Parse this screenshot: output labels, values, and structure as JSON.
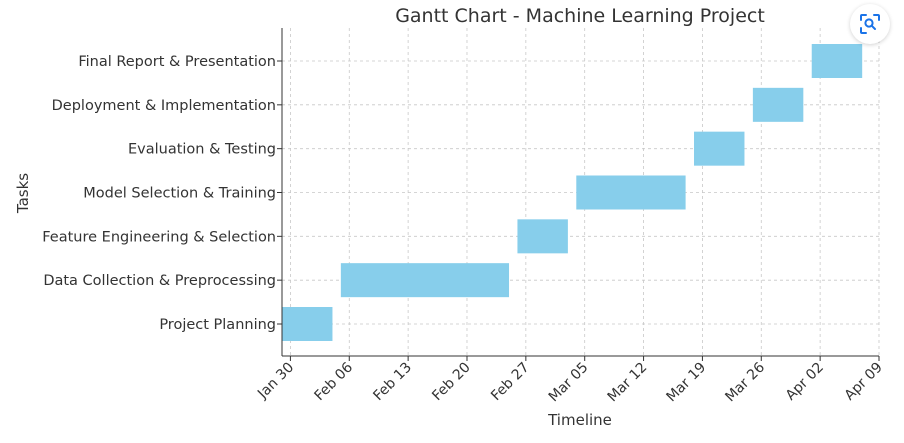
{
  "chart_data": {
    "type": "gantt",
    "title": "Gantt Chart - Machine Learning Project",
    "xlabel": "Timeline",
    "ylabel": "Tasks",
    "x_ticks": [
      "Jan 30",
      "Feb 06",
      "Feb 13",
      "Feb 20",
      "Feb 27",
      "Mar 05",
      "Mar 12",
      "Mar 19",
      "Mar 26",
      "Apr 02",
      "Apr 09"
    ],
    "xlim": [
      "2023-01-29",
      "2023-04-10"
    ],
    "grid": true,
    "bar_color": "#87ceeb",
    "tasks": [
      {
        "name": "Project Planning",
        "start": "2023-01-29",
        "end": "2023-02-04"
      },
      {
        "name": "Data Collection & Preprocessing",
        "start": "2023-02-05",
        "end": "2023-02-25"
      },
      {
        "name": "Feature Engineering & Selection",
        "start": "2023-02-26",
        "end": "2023-03-04"
      },
      {
        "name": "Model Selection & Training",
        "start": "2023-03-05",
        "end": "2023-03-18"
      },
      {
        "name": "Evaluation & Testing",
        "start": "2023-03-19",
        "end": "2023-03-25"
      },
      {
        "name": "Deployment & Implementation",
        "start": "2023-03-26",
        "end": "2023-04-01"
      },
      {
        "name": "Final Report & Presentation",
        "start": "2023-04-02",
        "end": "2023-04-08"
      }
    ]
  },
  "lens": {
    "icon": "lens-icon",
    "accent": "#1a73e8"
  }
}
